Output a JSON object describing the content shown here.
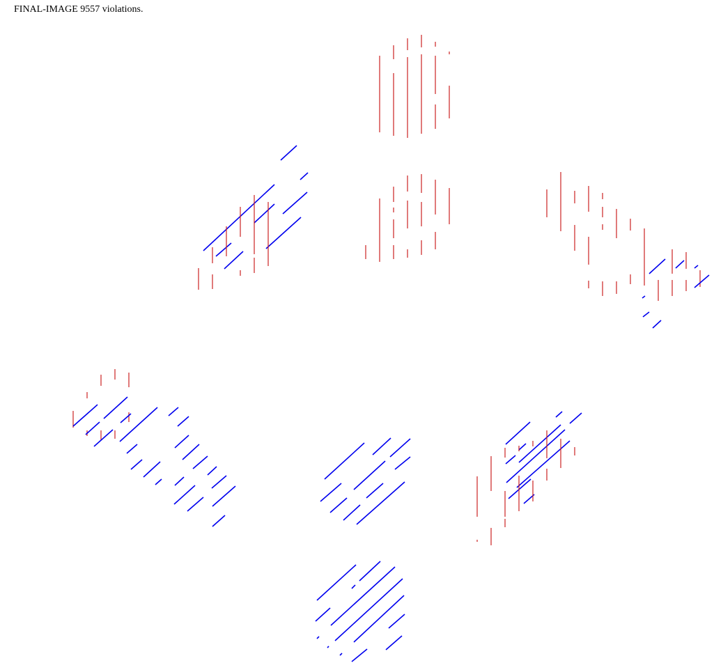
{
  "caption": "FINAL-IMAGE 9557 violations.",
  "colors": {
    "vertical_marks": "#cc2222",
    "diagonal_marks": "#0000ee",
    "background": "#ffffff"
  }
}
